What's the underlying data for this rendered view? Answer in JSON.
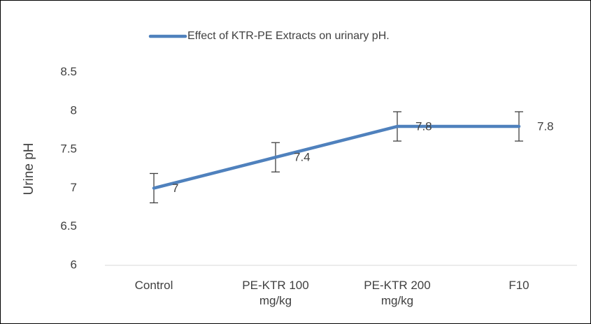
{
  "chart_data": {
    "type": "line",
    "y_label": "Urine pH",
    "categories": [
      "Control",
      "PE-KTR 100 mg/kg",
      "PE-KTR 200 mg/kg",
      "F10"
    ],
    "series": [
      {
        "name": "Effect of KTR-PE Extracts on urinary pH.",
        "color": "#4f81bd",
        "values": [
          7,
          7.4,
          7.8,
          7.8
        ],
        "errors": [
          0.19,
          0.19,
          0.19,
          0.19
        ]
      }
    ],
    "ylim": [
      6,
      8.75
    ],
    "yticks": [
      6,
      6.5,
      7,
      7.5,
      8,
      8.5
    ],
    "grid": false,
    "legend": "top"
  }
}
